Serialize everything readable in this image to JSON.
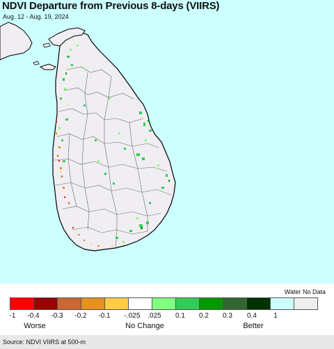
{
  "header": {
    "title": "NDVI Departure from Previous 8-days (VIIRS)",
    "date_range": "Aug. 12 - Aug. 19, 2024"
  },
  "map": {
    "region": "Sri Lanka",
    "ocean_color": "#ccffff",
    "land_color": "#f0eef2",
    "border_color": "#555555",
    "coast_color": "#000000"
  },
  "legend": {
    "water_no_data_label": "Water No Data",
    "swatch_colors": [
      "#ff0000",
      "#990000",
      "#cc6633",
      "#e89020",
      "#ffcc44",
      "#ffffff",
      "#80ff80",
      "#33cc55",
      "#009900",
      "#336633",
      "#003300",
      "#ccffff",
      "#eeeeee"
    ],
    "ticks": [
      "-1",
      "-0.4",
      "-0.3",
      "-0.2",
      "-0.1",
      "-.025",
      ".025",
      "0.1",
      "0.2",
      "0.3",
      "0.4",
      "1"
    ],
    "categories": {
      "worse": "Worse",
      "no_change": "No Change",
      "better": "Better"
    }
  },
  "footer": {
    "source": "Source: NDVI VIIRS at 500-m"
  }
}
